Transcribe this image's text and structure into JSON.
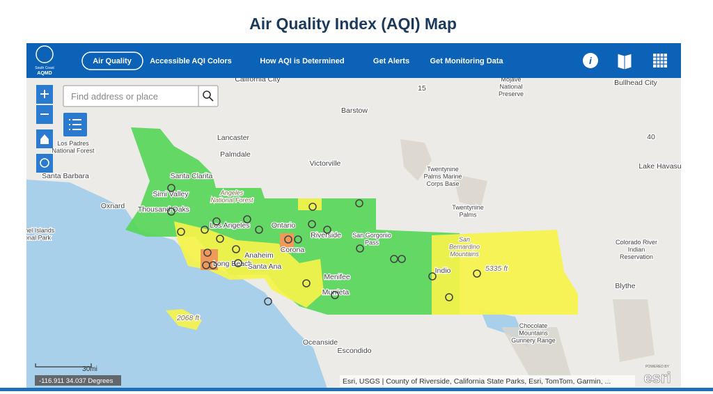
{
  "header": {
    "title": "Air Quality Index (AQI) Map",
    "logo": [
      "South Coast",
      "AQMD"
    ]
  },
  "nav": {
    "active": "Air Quality",
    "items": [
      "Accessible AQI Colors",
      "How AQI is Determined",
      "Get Alerts",
      "Get Monitoring Data"
    ]
  },
  "search": {
    "placeholder": "Find address or place"
  },
  "map": {
    "places": [
      [
        "California City"
      ],
      [
        "Mojave",
        "National",
        "Preserve"
      ],
      [
        "Bullhead City"
      ],
      [
        "Barstow"
      ],
      [
        "Lancaster"
      ],
      [
        "Palmdale"
      ],
      [
        "Victorville"
      ],
      [
        "Los Padres",
        "National Forest"
      ],
      [
        "Santa Barbara"
      ],
      [
        "Santa Clarita"
      ],
      [
        "Simi Valley"
      ],
      [
        "Angeles",
        "National Forest"
      ],
      [
        "Oxnard"
      ],
      [
        "Thousand Oaks"
      ],
      [
        "Los Angeles"
      ],
      [
        "Ontario"
      ],
      [
        "Riverside"
      ],
      [
        "San Gorgonio",
        "Pass"
      ],
      [
        "Twentynine",
        "Palms Marine",
        "Corps Base"
      ],
      [
        "Twentynine",
        "Palms"
      ],
      [
        "Lake Havasu"
      ],
      [
        "Anaheim"
      ],
      [
        "Corona"
      ],
      [
        "Long Beach"
      ],
      [
        "Santa Ana"
      ],
      [
        "San",
        "Bernardino",
        "Mountains"
      ],
      [
        "Indio"
      ],
      [
        "Colorado River",
        "Indian",
        "Reservation"
      ],
      [
        "Blythe"
      ],
      [
        "Menifee"
      ],
      [
        "Murrieta"
      ],
      [
        "Oceanside"
      ],
      [
        "Escondido"
      ],
      [
        "Chocolate",
        "Mountains",
        "Gunnery Range"
      ],
      [
        "Channel Islands",
        "National Park"
      ],
      [
        "2068 ft"
      ],
      [
        "5335 ft"
      ],
      [
        "15"
      ],
      [
        "40"
      ]
    ],
    "scale": "30mi",
    "coordinates": "-116.911 34.037 Degrees",
    "attribution": "Esri, USGS | County of Riverside, California State Parks, Esri, TomTom, Garmin, ...",
    "powered_by": "POWERED BY",
    "esri": "esri"
  }
}
